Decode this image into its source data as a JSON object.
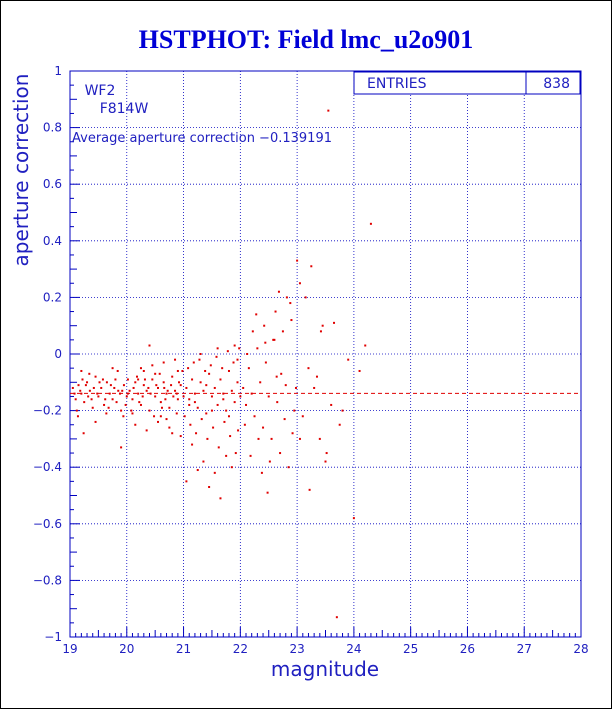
{
  "chart_data": {
    "type": "scatter",
    "title": "HSTPHOT: Field lmc_u2o901",
    "xlabel": "magnitude",
    "ylabel": "aperture correction",
    "xlim": [
      19,
      28
    ],
    "ylim": [
      -1,
      1
    ],
    "x_ticks": [
      "19",
      "20",
      "21",
      "22",
      "23",
      "24",
      "25",
      "26",
      "27",
      "28"
    ],
    "y_ticks": [
      "1",
      "0.8",
      "0.6",
      "0.4",
      "0.2",
      "0",
      "−0.2",
      "−0.4",
      "−0.6",
      "−0.8",
      "−1"
    ],
    "grid": true,
    "annotations": {
      "camera": "WF2",
      "filter": "F814W",
      "average_label": "Average aperture correction −0.139191",
      "average_value": -0.139191
    },
    "stats_box": {
      "label": "ENTRIES",
      "value": "838"
    },
    "series": [
      {
        "values": [
          [
            19.05,
            -0.12
          ],
          [
            19.1,
            -0.16
          ],
          [
            19.15,
            -0.11
          ],
          [
            19.2,
            -0.14
          ],
          [
            19.25,
            -0.17
          ],
          [
            19.3,
            -0.1
          ],
          [
            19.35,
            -0.13
          ],
          [
            19.4,
            -0.19
          ],
          [
            19.45,
            -0.08
          ],
          [
            19.5,
            -0.15
          ],
          [
            19.55,
            -0.12
          ],
          [
            19.6,
            -0.18
          ],
          [
            19.65,
            -0.1
          ],
          [
            19.7,
            -0.14
          ],
          [
            19.75,
            -0.16
          ],
          [
            19.8,
            -0.09
          ],
          [
            19.85,
            -0.13
          ],
          [
            19.9,
            -0.2
          ],
          [
            19.95,
            -0.11
          ],
          [
            20.0,
            -0.15
          ],
          [
            19.12,
            -0.2
          ],
          [
            19.22,
            -0.09
          ],
          [
            19.32,
            -0.15
          ],
          [
            19.42,
            -0.12
          ],
          [
            19.52,
            -0.1
          ],
          [
            19.62,
            -0.16
          ],
          [
            19.72,
            -0.11
          ],
          [
            19.82,
            -0.17
          ],
          [
            19.92,
            -0.13
          ],
          [
            20.02,
            -0.09
          ],
          [
            19.18,
            -0.13
          ],
          [
            19.28,
            -0.11
          ],
          [
            19.38,
            -0.16
          ],
          [
            19.48,
            -0.14
          ],
          [
            19.58,
            -0.09
          ],
          [
            19.68,
            -0.19
          ],
          [
            19.78,
            -0.12
          ],
          [
            19.88,
            -0.14
          ],
          [
            19.98,
            -0.18
          ],
          [
            19.08,
            -0.14
          ],
          [
            19.14,
            -0.22
          ],
          [
            19.34,
            -0.07
          ],
          [
            19.64,
            -0.21
          ],
          [
            19.84,
            -0.06
          ],
          [
            19.94,
            -0.22
          ],
          [
            19.24,
            -0.28
          ],
          [
            19.2,
            -0.06
          ],
          [
            19.75,
            -0.05
          ],
          [
            19.45,
            -0.24
          ],
          [
            19.9,
            -0.33
          ],
          [
            20.05,
            -0.13
          ],
          [
            20.1,
            -0.16
          ],
          [
            20.15,
            -0.1
          ],
          [
            20.2,
            -0.14
          ],
          [
            20.25,
            -0.18
          ],
          [
            20.3,
            -0.11
          ],
          [
            20.35,
            -0.13
          ],
          [
            20.4,
            -0.2
          ],
          [
            20.45,
            -0.09
          ],
          [
            20.5,
            -0.15
          ],
          [
            20.55,
            -0.12
          ],
          [
            20.6,
            -0.17
          ],
          [
            20.65,
            -0.1
          ],
          [
            20.7,
            -0.14
          ],
          [
            20.75,
            -0.19
          ],
          [
            20.8,
            -0.08
          ],
          [
            20.85,
            -0.13
          ],
          [
            20.9,
            -0.16
          ],
          [
            20.95,
            -0.11
          ],
          [
            21.0,
            -0.15
          ],
          [
            20.08,
            -0.2
          ],
          [
            20.18,
            -0.08
          ],
          [
            20.28,
            -0.15
          ],
          [
            20.38,
            -0.12
          ],
          [
            20.48,
            -0.22
          ],
          [
            20.58,
            -0.07
          ],
          [
            20.68,
            -0.16
          ],
          [
            20.78,
            -0.11
          ],
          [
            20.88,
            -0.21
          ],
          [
            20.98,
            -0.06
          ],
          [
            20.12,
            -0.12
          ],
          [
            20.22,
            -0.17
          ],
          [
            20.32,
            -0.09
          ],
          [
            20.42,
            -0.14
          ],
          [
            20.52,
            -0.11
          ],
          [
            20.62,
            -0.19
          ],
          [
            20.72,
            -0.13
          ],
          [
            20.82,
            -0.15
          ],
          [
            20.92,
            -0.1
          ],
          [
            20.02,
            -0.14
          ],
          [
            20.15,
            -0.25
          ],
          [
            20.35,
            -0.27
          ],
          [
            20.55,
            -0.24
          ],
          [
            20.75,
            -0.26
          ],
          [
            20.95,
            -0.29
          ],
          [
            20.25,
            -0.05
          ],
          [
            20.45,
            -0.04
          ],
          [
            20.65,
            -0.03
          ],
          [
            20.85,
            -0.02
          ],
          [
            20.4,
            0.03
          ],
          [
            20.6,
            -0.22
          ],
          [
            20.8,
            -0.28
          ],
          [
            20.9,
            -0.06
          ],
          [
            20.1,
            -0.21
          ],
          [
            20.3,
            -0.06
          ],
          [
            20.7,
            -0.23
          ],
          [
            20.5,
            -0.07
          ],
          [
            20.2,
            -0.09
          ],
          [
            20.88,
            -0.14
          ],
          [
            20.66,
            -0.12
          ],
          [
            21.05,
            -0.12
          ],
          [
            21.1,
            -0.16
          ],
          [
            21.15,
            -0.09
          ],
          [
            21.2,
            -0.14
          ],
          [
            21.25,
            -0.19
          ],
          [
            21.3,
            -0.1
          ],
          [
            21.35,
            -0.13
          ],
          [
            21.4,
            -0.21
          ],
          [
            21.45,
            -0.07
          ],
          [
            21.5,
            -0.15
          ],
          [
            21.55,
            -0.12
          ],
          [
            21.6,
            -0.18
          ],
          [
            21.65,
            -0.09
          ],
          [
            21.7,
            -0.14
          ],
          [
            21.75,
            -0.2
          ],
          [
            21.8,
            -0.06
          ],
          [
            21.85,
            -0.13
          ],
          [
            21.9,
            -0.17
          ],
          [
            21.95,
            -0.1
          ],
          [
            22.0,
            -0.15
          ],
          [
            21.08,
            -0.05
          ],
          [
            21.18,
            -0.03
          ],
          [
            21.28,
            -0.02
          ],
          [
            21.38,
            -0.06
          ],
          [
            21.48,
            -0.04
          ],
          [
            21.58,
            -0.01
          ],
          [
            21.68,
            -0.05
          ],
          [
            21.78,
            0.01
          ],
          [
            21.88,
            -0.03
          ],
          [
            21.98,
            0.02
          ],
          [
            21.12,
            -0.25
          ],
          [
            21.22,
            -0.28
          ],
          [
            21.32,
            -0.23
          ],
          [
            21.42,
            -0.3
          ],
          [
            21.52,
            -0.26
          ],
          [
            21.62,
            -0.33
          ],
          [
            21.72,
            -0.24
          ],
          [
            21.82,
            -0.29
          ],
          [
            21.92,
            -0.35
          ],
          [
            21.02,
            -0.22
          ],
          [
            21.15,
            -0.32
          ],
          [
            21.35,
            -0.38
          ],
          [
            21.55,
            -0.42
          ],
          [
            21.75,
            -0.36
          ],
          [
            21.45,
            -0.47
          ],
          [
            21.65,
            -0.51
          ],
          [
            21.25,
            -0.41
          ],
          [
            21.85,
            -0.4
          ],
          [
            21.05,
            -0.45
          ],
          [
            21.95,
            -0.02
          ],
          [
            21.3,
            0.0
          ],
          [
            21.6,
            0.02
          ],
          [
            21.9,
            0.03
          ],
          [
            21.2,
            -0.17
          ],
          [
            21.4,
            -0.11
          ],
          [
            21.7,
            -0.16
          ],
          [
            21.8,
            -0.22
          ],
          [
            21.5,
            -0.2
          ],
          [
            21.1,
            -0.18
          ],
          [
            21.96,
            -0.27
          ],
          [
            22.05,
            -0.12
          ],
          [
            22.1,
            -0.18
          ],
          [
            22.15,
            -0.05
          ],
          [
            22.2,
            -0.14
          ],
          [
            22.25,
            -0.22
          ],
          [
            22.3,
            0.02
          ],
          [
            22.35,
            -0.1
          ],
          [
            22.4,
            -0.26
          ],
          [
            22.45,
            -0.03
          ],
          [
            22.5,
            -0.15
          ],
          [
            22.55,
            -0.3
          ],
          [
            22.6,
            0.05
          ],
          [
            22.65,
            -0.17
          ],
          [
            22.7,
            -0.35
          ],
          [
            22.75,
            0.08
          ],
          [
            22.8,
            -0.11
          ],
          [
            22.85,
            -0.4
          ],
          [
            22.9,
            0.12
          ],
          [
            22.95,
            -0.2
          ],
          [
            22.12,
            0.0
          ],
          [
            22.22,
            0.08
          ],
          [
            22.32,
            -0.3
          ],
          [
            22.42,
            0.1
          ],
          [
            22.52,
            -0.38
          ],
          [
            22.62,
            0.15
          ],
          [
            22.72,
            -0.07
          ],
          [
            22.82,
            0.2
          ],
          [
            22.92,
            -0.28
          ],
          [
            22.18,
            -0.36
          ],
          [
            22.38,
            -0.42
          ],
          [
            22.48,
            -0.49
          ],
          [
            22.58,
            0.05
          ],
          [
            22.68,
            0.22
          ],
          [
            22.78,
            -0.23
          ],
          [
            22.88,
            0.18
          ],
          [
            22.98,
            -0.12
          ],
          [
            22.28,
            0.14
          ],
          [
            22.08,
            -0.25
          ],
          [
            22.64,
            -0.08
          ],
          [
            22.44,
            0.04
          ],
          [
            23.0,
            0.33
          ],
          [
            23.05,
            0.25
          ],
          [
            23.1,
            -0.22
          ],
          [
            23.2,
            -0.05
          ],
          [
            23.25,
            0.31
          ],
          [
            23.3,
            -0.12
          ],
          [
            23.35,
            -0.08
          ],
          [
            23.4,
            -0.3
          ],
          [
            23.45,
            0.1
          ],
          [
            23.5,
            -0.38
          ],
          [
            23.55,
            0.86
          ],
          [
            23.6,
            -0.18
          ],
          [
            23.65,
            0.11
          ],
          [
            23.7,
            -0.93
          ],
          [
            23.8,
            -0.2
          ],
          [
            23.9,
            -0.02
          ],
          [
            24.1,
            -0.06
          ],
          [
            24.2,
            0.03
          ],
          [
            24.3,
            0.46
          ],
          [
            24.0,
            -0.58
          ],
          [
            23.15,
            0.2
          ],
          [
            23.42,
            0.08
          ],
          [
            23.52,
            -0.35
          ],
          [
            23.75,
            -0.25
          ],
          [
            23.05,
            -0.3
          ],
          [
            23.22,
            -0.48
          ]
        ]
      }
    ]
  }
}
